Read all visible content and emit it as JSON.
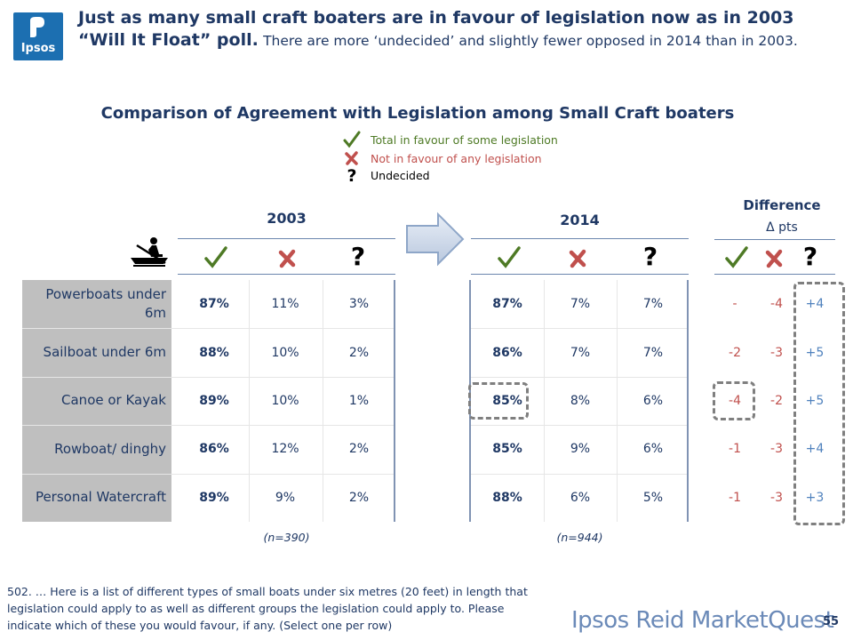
{
  "logo": {
    "text": "Ipsos"
  },
  "header": {
    "headline_bold": "Just as many small craft boaters are in favour of legislation now as in 2003 “Will It Float” poll.",
    "headline_rest": "There are more ‘undecided’ and slightly fewer opposed in 2014 than in 2003."
  },
  "subtitle": "Comparison of Agreement with Legislation among Small Craft boaters",
  "legend": [
    {
      "icon": "check-icon",
      "label": "Total in favour of some legislation",
      "color": "#4e7a25"
    },
    {
      "icon": "cross-icon",
      "label": "Not in favour of any legislation",
      "color": "#c0504d"
    },
    {
      "icon": "question-icon",
      "label": "Undecided",
      "color": "#000000"
    }
  ],
  "columns": {
    "year_2003": "2003",
    "year_2014": "2014",
    "difference_title": "Difference",
    "difference_sub": "Δ pts",
    "question_mark": "?"
  },
  "rows": [
    {
      "category": "Powerboats under 6m",
      "y2003": [
        "87%",
        "11%",
        "3%"
      ],
      "y2014": [
        "87%",
        "7%",
        "7%"
      ],
      "diff": [
        "-",
        "-4",
        "+4"
      ]
    },
    {
      "category": "Sailboat under 6m",
      "y2003": [
        "88%",
        "10%",
        "2%"
      ],
      "y2014": [
        "86%",
        "7%",
        "7%"
      ],
      "diff": [
        "-2",
        "-3",
        "+5"
      ]
    },
    {
      "category": "Canoe or Kayak",
      "y2003": [
        "89%",
        "10%",
        "1%"
      ],
      "y2014": [
        "85%",
        "8%",
        "6%"
      ],
      "diff": [
        "-4",
        "-2",
        "+5"
      ]
    },
    {
      "category": "Rowboat/ dinghy",
      "y2003": [
        "86%",
        "12%",
        "2%"
      ],
      "y2014": [
        "85%",
        "9%",
        "6%"
      ],
      "diff": [
        "-1",
        "-3",
        "+4"
      ]
    },
    {
      "category": "Personal Watercraft",
      "y2003": [
        "89%",
        "9%",
        "2%"
      ],
      "y2014": [
        "88%",
        "6%",
        "5%"
      ],
      "diff": [
        "-1",
        "-3",
        "+3"
      ]
    }
  ],
  "sample": {
    "n2003": "(n=390)",
    "n2014": "(n=944)"
  },
  "footnote": "502. … Here is a list of different types of small boats under six metres (20 feet) in length that legislation could apply to as well as different groups the legislation could apply to. Please indicate which of these you would favour, if any. (Select one per row)",
  "brand": "Ipsos Reid MarketQuest",
  "page_number": "55",
  "colors": {
    "navy": "#1f3864",
    "check": "#4e7a25",
    "cross": "#c0504d",
    "blue": "#4f81bd",
    "gray": "#bfbfbf"
  }
}
